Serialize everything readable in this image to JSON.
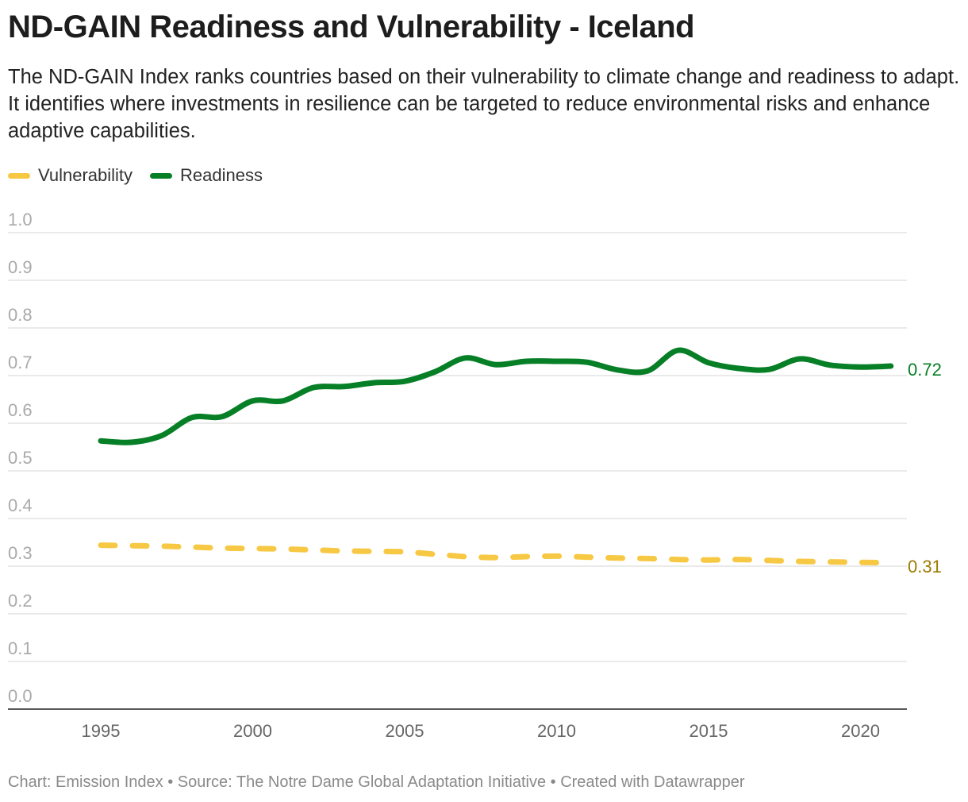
{
  "title": "ND-GAIN Readiness and Vulnerability - Iceland",
  "description": "The ND-GAIN Index ranks countries based on their vulnerability to climate change and readiness to adapt. It identifies where investments in resilience can be targeted to reduce environmental risks and enhance adaptive capabilities.",
  "footer": "Chart: Emission Index • Source: The Notre Dame Global Adaptation Initiative • Created with Datawrapper",
  "chart_data": {
    "type": "line",
    "title": "ND-GAIN Readiness and Vulnerability - Iceland",
    "xlabel": "",
    "ylabel": "",
    "ylim": [
      0,
      1
    ],
    "yticks": [
      "0.0",
      "0.1",
      "0.2",
      "0.3",
      "0.4",
      "0.5",
      "0.6",
      "0.7",
      "0.8",
      "0.9",
      "1.0"
    ],
    "xticks": [
      "1995",
      "2000",
      "2005",
      "2010",
      "2015",
      "2020"
    ],
    "grid": true,
    "legend": "top-left",
    "x": [
      1995,
      1996,
      1997,
      1998,
      1999,
      2000,
      2001,
      2002,
      2003,
      2004,
      2005,
      2006,
      2007,
      2008,
      2009,
      2010,
      2011,
      2012,
      2013,
      2014,
      2015,
      2016,
      2017,
      2018,
      2019,
      2020,
      2021
    ],
    "series": [
      {
        "name": "Vulnerability",
        "color": "#f7c843",
        "style": "dashed",
        "end_label": "0.31",
        "label_color": "#9c7a00",
        "values": [
          0.344,
          0.343,
          0.342,
          0.34,
          0.338,
          0.337,
          0.336,
          0.334,
          0.332,
          0.331,
          0.33,
          0.325,
          0.32,
          0.318,
          0.32,
          0.321,
          0.319,
          0.317,
          0.316,
          0.314,
          0.313,
          0.314,
          0.312,
          0.31,
          0.309,
          0.308,
          0.307
        ]
      },
      {
        "name": "Readiness",
        "color": "#067f26",
        "style": "solid",
        "end_label": "0.72",
        "label_color": "#067f26",
        "values": [
          0.563,
          0.56,
          0.574,
          0.612,
          0.614,
          0.647,
          0.647,
          0.675,
          0.677,
          0.685,
          0.688,
          0.708,
          0.737,
          0.723,
          0.73,
          0.73,
          0.728,
          0.712,
          0.71,
          0.753,
          0.727,
          0.715,
          0.713,
          0.735,
          0.722,
          0.718,
          0.72
        ]
      }
    ]
  }
}
